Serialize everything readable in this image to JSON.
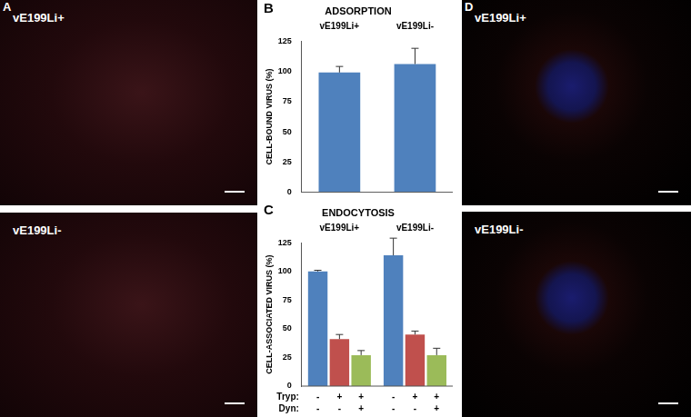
{
  "panels": [
    {
      "label": "A",
      "images": [
        "vE199Li+",
        "vE199Li-"
      ]
    },
    {
      "label": "D",
      "images": [
        "vE199Li+",
        "vE199Li-"
      ]
    }
  ],
  "chart_data": [
    {
      "type": "bar",
      "annotations": [
        "B"
      ],
      "title": "ADSORPTION",
      "y_label": "CELL-BOUND VIRUS (%)",
      "categories": [
        "vE199Li+",
        "vE199Li-"
      ],
      "values": [
        99,
        106
      ],
      "errors": [
        5,
        13
      ],
      "color": "#4f81bd",
      "ylim": [
        0,
        125
      ],
      "yticks": [
        0,
        25,
        50,
        75,
        100,
        125
      ],
      "grid": false
    },
    {
      "type": "bar",
      "annotations": [
        "C"
      ],
      "title": "ENDOCYTOSIS",
      "y_label": "CELL-ASSOCIATED VIRUS (%)",
      "categories": [
        "vE199Li+",
        "vE199Li-"
      ],
      "series": [
        {
          "color": "#4f81bd",
          "values": [
            100,
            114
          ],
          "errors": [
            1,
            15
          ]
        },
        {
          "color": "#c0504d",
          "values": [
            41,
            45
          ],
          "errors": [
            4,
            3
          ]
        },
        {
          "color": "#9bbb59",
          "values": [
            27,
            27
          ],
          "errors": [
            4,
            6
          ]
        }
      ],
      "condition_rows": [
        {
          "label": "Tryp:",
          "values": [
            "-",
            "+",
            "+"
          ]
        },
        {
          "label": "Dyn:",
          "values": [
            "-",
            "-",
            "+"
          ]
        }
      ],
      "ylim": [
        0,
        125
      ],
      "yticks": [
        0,
        25,
        50,
        75,
        100,
        125
      ],
      "grid": false
    }
  ]
}
